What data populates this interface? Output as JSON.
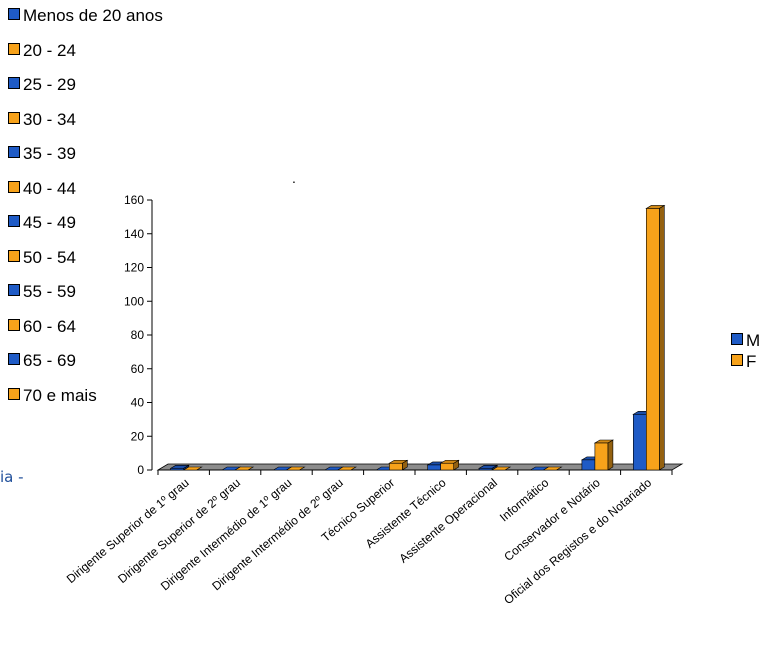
{
  "age_legend": {
    "items": [
      {
        "label": "Menos de 20 anos",
        "color": "#1f5bc6"
      },
      {
        "label": "20 - 24",
        "color": "#f7a21a"
      },
      {
        "label": "25 - 29",
        "color": "#1f5bc6"
      },
      {
        "label": "30 - 34",
        "color": "#f7a21a"
      },
      {
        "label": "35 - 39",
        "color": "#1f5bc6"
      },
      {
        "label": "40 - 44",
        "color": "#f7a21a"
      },
      {
        "label": "45 - 49",
        "color": "#1f5bc6"
      },
      {
        "label": "50 - 54",
        "color": "#f7a21a"
      },
      {
        "label": "55 - 59",
        "color": "#1f5bc6"
      },
      {
        "label": "60 - 64",
        "color": "#f7a21a"
      },
      {
        "label": "65 - 69",
        "color": "#1f5bc6"
      },
      {
        "label": "70 e mais",
        "color": "#f7a21a"
      }
    ]
  },
  "side_text": "ia -",
  "dot_text": ".",
  "chart_data": {
    "type": "bar",
    "style": "3d-clustered",
    "categories": [
      "Dirigente Superior de 1º grau",
      "Dirigente Superior de 2º grau",
      "Dirigente Intermédio de 1º grau",
      "Dirigente Intermédio de 2º grau",
      "Técnico Superior",
      "Assistente Técnico",
      "Assistente Operacional",
      "Informático",
      "Conservador e Notário",
      "Oficial dos Registos e do Notariado"
    ],
    "series": [
      {
        "name": "M",
        "color": "#1f5bc6",
        "values": [
          1,
          0,
          0,
          0,
          0,
          3,
          1,
          0,
          6,
          33
        ]
      },
      {
        "name": "F",
        "color": "#f7a21a",
        "values": [
          0,
          0,
          0,
          0,
          4,
          4,
          0,
          0,
          16,
          155
        ]
      }
    ],
    "ylim": [
      0,
      160
    ],
    "yticks": [
      0,
      20,
      40,
      60,
      80,
      100,
      120,
      140,
      160
    ],
    "legend_position": "right",
    "grid": false
  }
}
